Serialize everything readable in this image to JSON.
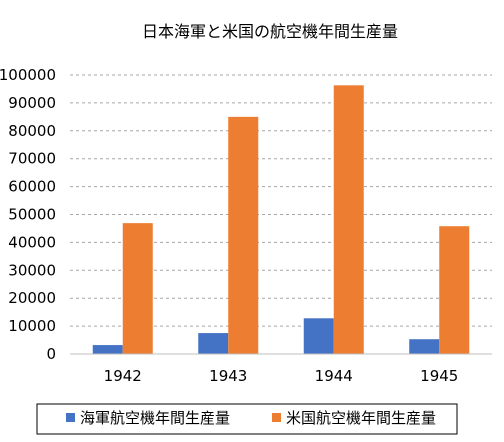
{
  "chart_data": {
    "type": "bar",
    "title": "日本海軍と米国の航空機年間生産量",
    "categories": [
      "1942",
      "1943",
      "1944",
      "1945"
    ],
    "series": [
      {
        "name": "海軍航空機年間生産量",
        "values": [
          3200,
          7500,
          12800,
          5300
        ],
        "color": "#4472c4"
      },
      {
        "name": "米国航空機年間生産量",
        "values": [
          46900,
          85000,
          96300,
          45800
        ],
        "color": "#ed7d31"
      }
    ],
    "ylim": [
      0,
      100000
    ],
    "yticks": [
      0,
      10000,
      20000,
      30000,
      40000,
      50000,
      60000,
      70000,
      80000,
      90000,
      100000
    ],
    "ytick_labels": [
      "0",
      "10000",
      "20000",
      "30000",
      "40000",
      "50000",
      "60000",
      "70000",
      "80000",
      "90000",
      "100000"
    ],
    "grid": true,
    "legend_position": "bottom"
  }
}
